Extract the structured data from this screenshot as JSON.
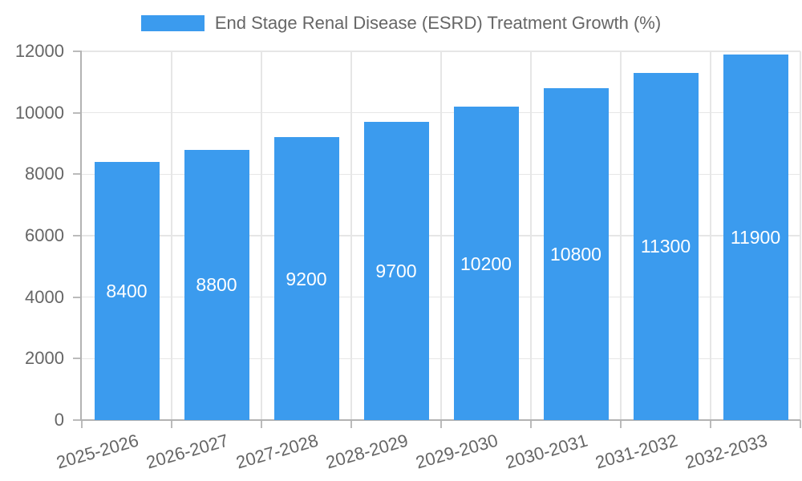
{
  "chart_data": {
    "type": "bar",
    "title": "",
    "legend_position": "top",
    "categories": [
      "2025-2026",
      "2026-2027",
      "2027-2028",
      "2028-2029",
      "2029-2030",
      "2030-2031",
      "2031-2032",
      "2032-2033"
    ],
    "series": [
      {
        "name": "End Stage Renal Disease (ESRD) Treatment Growth (%)",
        "values": [
          8400,
          8800,
          9200,
          9700,
          10200,
          10800,
          11300,
          11900
        ]
      }
    ],
    "value_labels": [
      "8400",
      "8800",
      "9200",
      "9700",
      "10200",
      "10800",
      "11300",
      "11900"
    ],
    "xlabel": "",
    "ylabel": "",
    "ylim": [
      0,
      12000
    ],
    "yticks": [
      0,
      2000,
      4000,
      6000,
      8000,
      10000,
      12000
    ],
    "grid": true,
    "x_label_rotation_deg": -16,
    "colors": {
      "bar": "#3b9bee",
      "value_label_text": "#ffffff",
      "axis_text": "#666666",
      "gridline": "#e6e6e6",
      "axis_line": "#b3b3b3",
      "background": "#ffffff"
    }
  }
}
